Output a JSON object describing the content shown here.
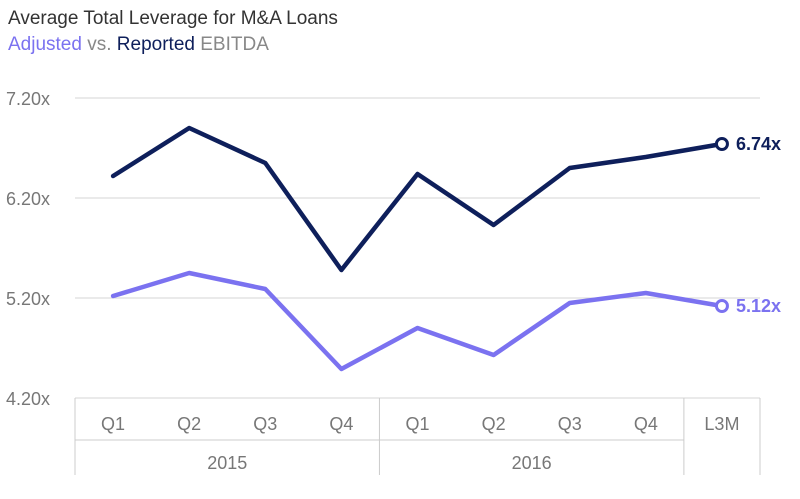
{
  "chart_data": {
    "type": "line",
    "title": "Average Total Leverage for M&A Loans",
    "subtitle": {
      "adjusted": "Adjusted",
      "vs": "vs.",
      "reported": "Reported",
      "ebitda": "EBITDA"
    },
    "categories": [
      "Q1",
      "Q2",
      "Q3",
      "Q4",
      "Q1",
      "Q2",
      "Q3",
      "Q4",
      "L3M"
    ],
    "groups": [
      {
        "label": "2015",
        "from": 0,
        "to": 3
      },
      {
        "label": "2016",
        "from": 4,
        "to": 7
      }
    ],
    "yticks": [
      "7.20x",
      "6.20x",
      "5.20x",
      "4.20x"
    ],
    "ytick_values": [
      7.2,
      6.2,
      5.2,
      4.2
    ],
    "ylim": [
      4.2,
      7.2
    ],
    "grid": true,
    "series": [
      {
        "name": "Reported",
        "color": "#0e1f5b",
        "values": [
          6.42,
          6.9,
          6.55,
          5.48,
          6.44,
          5.93,
          6.5,
          6.61,
          6.74
        ],
        "end_label": "6.74x"
      },
      {
        "name": "Adjusted",
        "color": "#7b72f0",
        "values": [
          5.22,
          5.45,
          5.29,
          4.49,
          4.9,
          4.63,
          5.15,
          5.25,
          5.12
        ],
        "end_label": "5.12x"
      }
    ]
  }
}
